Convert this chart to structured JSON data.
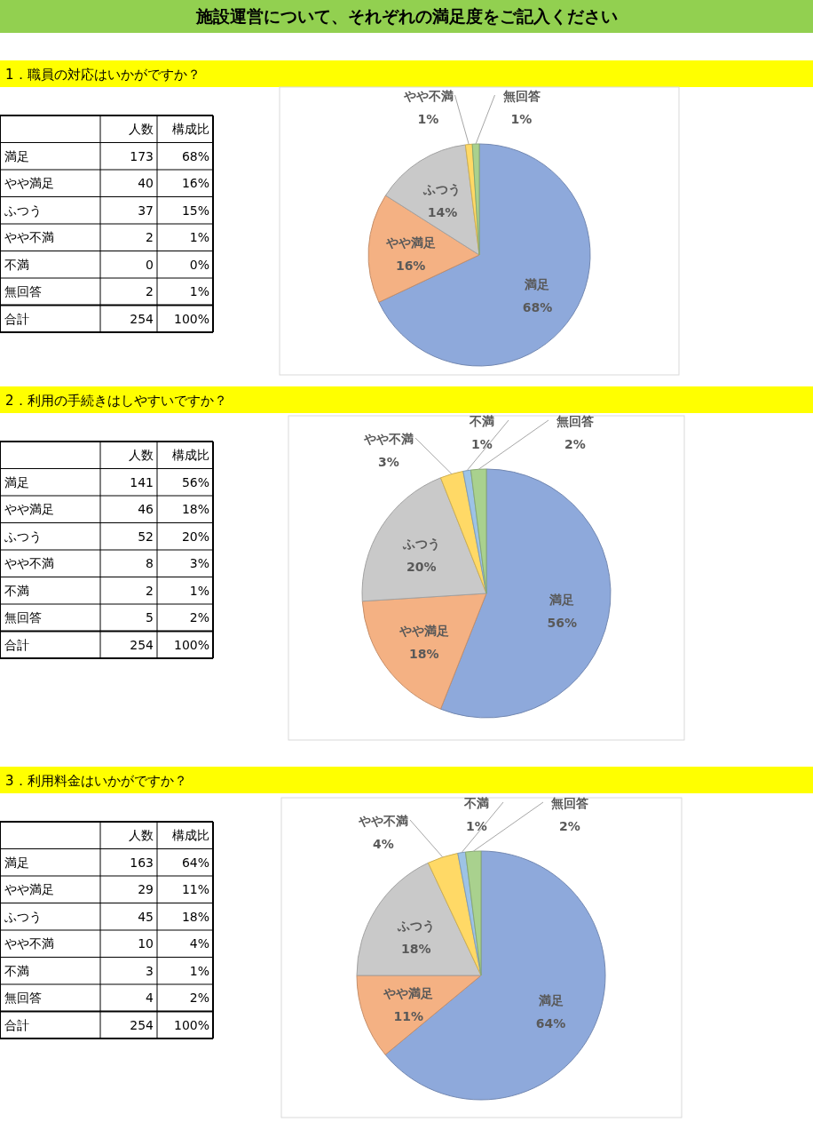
{
  "chart_data": [
    {
      "type": "pie",
      "title": "施設運営について、それぞれの満足度をご記入ください",
      "subtitle": "1．職員の対応はいかがですか？",
      "categories": [
        "満足",
        "やや満足",
        "ふつう",
        "やや不満",
        "無回答"
      ],
      "values": [
        68,
        16,
        14,
        1,
        1
      ],
      "value_labels": [
        "68%",
        "16%",
        "14%",
        "1%",
        "1%"
      ],
      "colors": [
        "#8ea9db",
        "#f4b183",
        "#c9c9c9",
        "#ffd966",
        "#a9d18e"
      ],
      "annotations": [
        "人数",
        "構成比",
        "満足",
        "173",
        "68%",
        "やや満足",
        "40",
        "16%",
        "ふつう",
        "37",
        "15%",
        "やや不満",
        "2",
        "1%",
        "不満",
        "0",
        "0%",
        "無回答",
        "2",
        "1%",
        "合計",
        "254",
        "100%"
      ]
    },
    {
      "type": "pie",
      "subtitle": "2．利用の手続きはしやすいですか？",
      "categories": [
        "満足",
        "やや満足",
        "ふつう",
        "やや不満",
        "不満",
        "無回答"
      ],
      "values": [
        56,
        18,
        20,
        3,
        1,
        2
      ],
      "value_labels": [
        "56%",
        "18%",
        "20%",
        "3%",
        "1%",
        "2%"
      ],
      "colors": [
        "#8ea9db",
        "#f4b183",
        "#c9c9c9",
        "#ffd966",
        "#9dc3e6",
        "#a9d18e"
      ],
      "annotations": [
        "人数",
        "構成比",
        "満足",
        "141",
        "56%",
        "やや満足",
        "46",
        "18%",
        "ふつう",
        "52",
        "20%",
        "やや不満",
        "8",
        "3%",
        "不満",
        "2",
        "1%",
        "無回答",
        "5",
        "2%",
        "合計",
        "254",
        "100%"
      ]
    },
    {
      "type": "pie",
      "subtitle": "3．利用料金はいかがですか？",
      "categories": [
        "満足",
        "やや満足",
        "ふつう",
        "やや不満",
        "不満",
        "無回答"
      ],
      "values": [
        64,
        11,
        18,
        4,
        1,
        2
      ],
      "value_labels": [
        "64%",
        "11%",
        "18%",
        "4%",
        "1%",
        "2%"
      ],
      "colors": [
        "#8ea9db",
        "#f4b183",
        "#c9c9c9",
        "#ffd966",
        "#9dc3e6",
        "#a9d18e"
      ],
      "annotations": [
        "人数",
        "構成比",
        "満足",
        "163",
        "64%",
        "やや満足",
        "29",
        "11%",
        "ふつう",
        "45",
        "18%",
        "やや不満",
        "10",
        "4%",
        "不満",
        "3",
        "1%",
        "無回答",
        "4",
        "2%",
        "合計",
        "254",
        "100%"
      ]
    }
  ]
}
